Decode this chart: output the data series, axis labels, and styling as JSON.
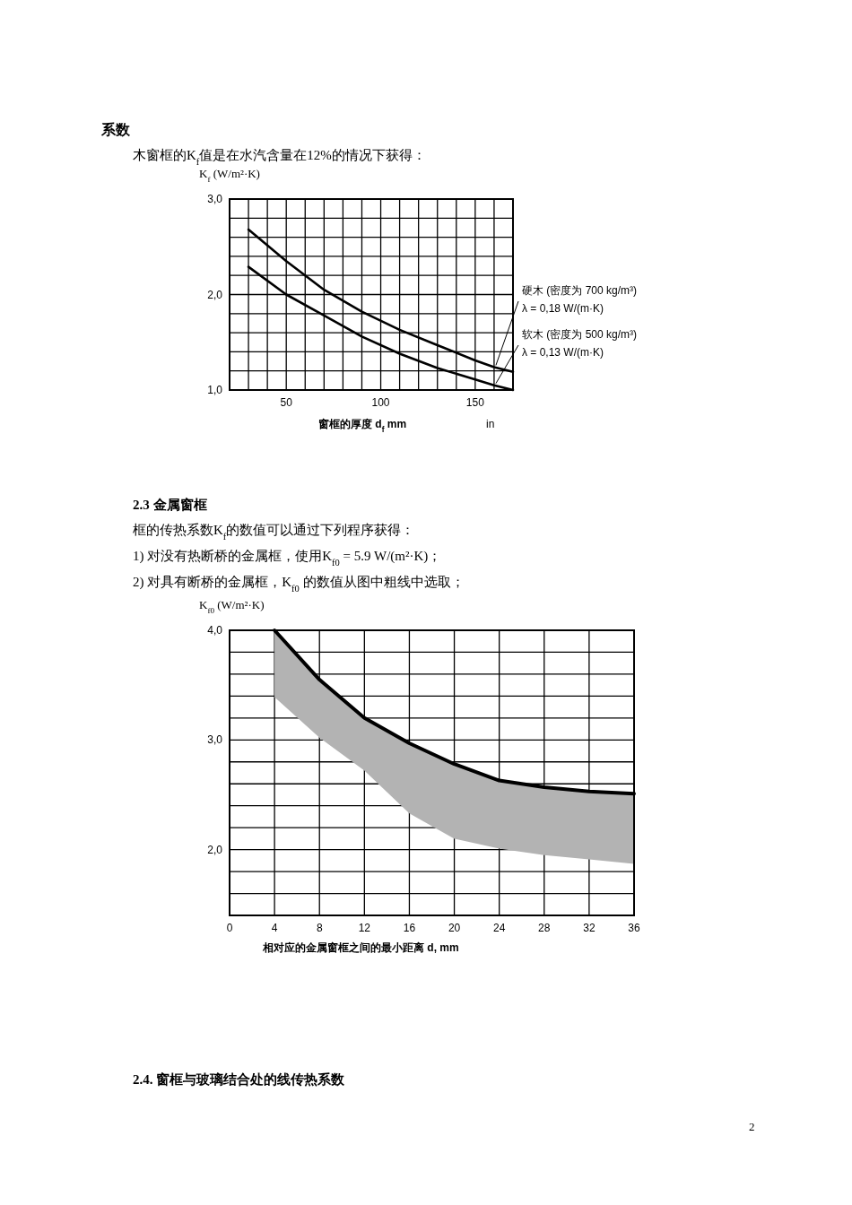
{
  "chart_data": [
    {
      "type": "line",
      "title": "系数",
      "subtitle": "木窗框的K$_{f}$值是在水汽含量在12%的情况下获得：",
      "ylabel": "K$_{f}$  (W/m²·K)",
      "xlabel": "窗框的厚度  d$_{f}$  mm",
      "annotations": [
        "in"
      ],
      "xlim": [
        20,
        170
      ],
      "ylim": [
        1,
        3
      ],
      "grid": true,
      "xticks": [
        {
          "value": 20,
          "label": null
        },
        {
          "value": 30,
          "label": null
        },
        {
          "value": 40,
          "label": null
        },
        50,
        {
          "value": 60,
          "label": null
        },
        {
          "value": 70,
          "label": null
        },
        {
          "value": 80,
          "label": null
        },
        {
          "value": 90,
          "label": null
        },
        100,
        {
          "value": 110,
          "label": null
        },
        {
          "value": 120,
          "label": null
        },
        {
          "value": 130,
          "label": null
        },
        {
          "value": 140,
          "label": null
        },
        150,
        {
          "value": 160,
          "label": null
        },
        {
          "value": 170,
          "label": null
        }
      ],
      "yticks": [
        {
          "value": 1,
          "label": "1,0"
        },
        {
          "value": 1.2,
          "label": null
        },
        {
          "value": 1.4,
          "label": null
        },
        {
          "value": 1.6,
          "label": null
        },
        {
          "value": 1.8,
          "label": null
        },
        {
          "value": 2,
          "label": "2,0"
        },
        {
          "value": 2.2,
          "label": null
        },
        {
          "value": 2.4,
          "label": null
        },
        {
          "value": 2.6,
          "label": null
        },
        {
          "value": 2.8,
          "label": null
        },
        {
          "value": 3,
          "label": "3,0"
        }
      ],
      "series": [
        {
          "name": "硬木 (密度为 700 kg/m³)\nλ = 0,18 W/(m·K)",
          "color": "#000000",
          "x": [
            30,
            50,
            70,
            90,
            110,
            130,
            150,
            160,
            170
          ],
          "values": [
            2.68,
            2.35,
            2.05,
            1.82,
            1.63,
            1.47,
            1.31,
            1.24,
            1.19
          ]
        },
        {
          "name": "软木 (密度为 500 kg/m³)\nλ = 0,13 W/(m·K)",
          "color": "#000000",
          "x": [
            30,
            50,
            70,
            90,
            110,
            130,
            150,
            160,
            170
          ],
          "values": [
            2.29,
            2.0,
            1.78,
            1.56,
            1.38,
            1.23,
            1.11,
            1.05,
            1.0
          ]
        }
      ]
    },
    {
      "type": "line",
      "title": "2.3 金属窗框",
      "ylabel": "K$_{f0}$  (W/m²·K)",
      "xlabel": "相对应的金属窗框之间的最小距离  d, mm",
      "annotations": [
        "框的传热系数K$_{f}$的数值可以通过下列程序获得：",
        "1) 对没有热断桥的金属框，使用K$_{f0}$ = 5.9 W/(m²·K)；",
        "2) 对具有断桥的金属框，K$_{f0}$ 的数值从图中粗线中选取；",
        "2.4. 窗框与玻璃结合处的线传热系数",
        "2"
      ],
      "xlim": [
        0,
        36
      ],
      "ylim": [
        1.4,
        4
      ],
      "grid": true,
      "xticks": [
        0,
        4,
        8,
        12,
        16,
        20,
        24,
        28,
        32,
        36
      ],
      "yticks": [
        {
          "value": 1.4,
          "label": null
        },
        {
          "value": 1.6,
          "label": null
        },
        {
          "value": 1.8,
          "label": null
        },
        {
          "value": 2,
          "label": "2,0"
        },
        {
          "value": 2.2,
          "label": null
        },
        {
          "value": 2.4,
          "label": null
        },
        {
          "value": 2.6,
          "label": null
        },
        {
          "value": 2.8,
          "label": null
        },
        {
          "value": 3,
          "label": "3,0"
        },
        {
          "value": 3.2,
          "label": null
        },
        {
          "value": 3.4,
          "label": null
        },
        {
          "value": 3.6,
          "label": null
        },
        {
          "value": 3.8,
          "label": null
        },
        {
          "value": 4,
          "label": "4,0"
        }
      ],
      "series": [
        {
          "color": "#000000",
          "x": [
            4,
            8,
            12,
            16,
            20,
            24,
            28,
            32,
            36
          ],
          "values": [
            4.0,
            3.55,
            3.2,
            2.97,
            2.78,
            2.63,
            2.57,
            2.53,
            2.51
          ],
          "lower": [
            3.39,
            3.02,
            2.72,
            2.33,
            2.1,
            2.01,
            1.95,
            1.91,
            1.87
          ],
          "upper": [
            4.0,
            3.55,
            3.2,
            2.97,
            2.78,
            2.63,
            2.57,
            2.53,
            2.51
          ]
        }
      ]
    }
  ]
}
